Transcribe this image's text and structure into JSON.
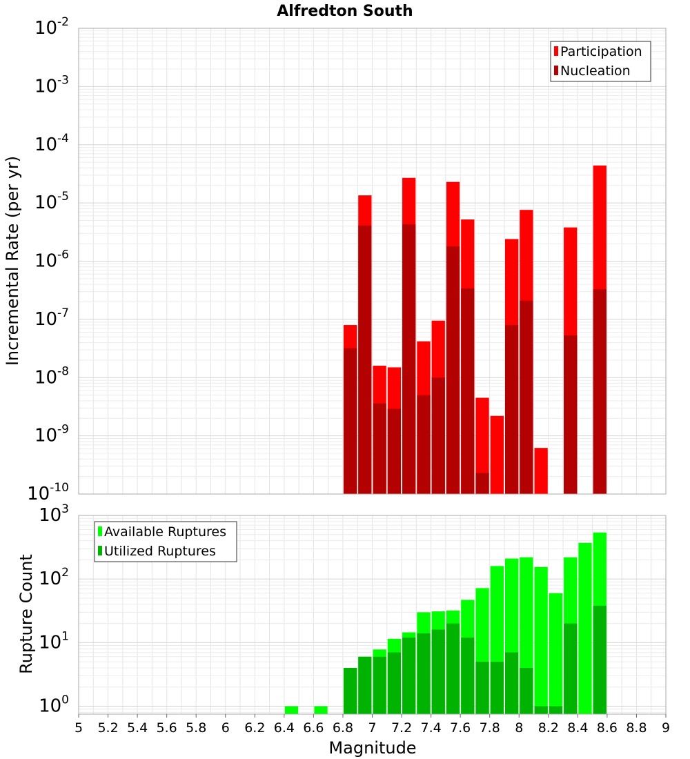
{
  "chart_data": {
    "title": "Alfredton South",
    "xlabel": "Magnitude",
    "x_ticks": [
      "5",
      "5.2",
      "5.4",
      "5.6",
      "5.8",
      "6",
      "6.2",
      "6.4",
      "6.6",
      "6.8",
      "7",
      "7.2",
      "7.4",
      "7.6",
      "7.8",
      "8",
      "8.2",
      "8.4",
      "8.6",
      "8.8",
      "9"
    ],
    "xlim": [
      5,
      9
    ],
    "bar_width": 0.1,
    "panels": [
      {
        "type": "bar",
        "scale": "log",
        "ylabel": "Incremental Rate (per yr)",
        "ylim_exponents": [
          -10,
          -2
        ],
        "y_ticks": [
          {
            "base": "10",
            "exp": "-2"
          },
          {
            "base": "10",
            "exp": "-3"
          },
          {
            "base": "10",
            "exp": "-4"
          },
          {
            "base": "10",
            "exp": "-5"
          },
          {
            "base": "10",
            "exp": "-6"
          },
          {
            "base": "10",
            "exp": "-7"
          },
          {
            "base": "10",
            "exp": "-8"
          },
          {
            "base": "10",
            "exp": "-9"
          },
          {
            "base": "10",
            "exp": "-10"
          }
        ],
        "grid": true,
        "legend_position": "top-right",
        "x": [
          6.85,
          6.95,
          7.05,
          7.15,
          7.25,
          7.35,
          7.45,
          7.55,
          7.65,
          7.75,
          7.85,
          7.95,
          8.05,
          8.15,
          8.35,
          8.55
        ],
        "series": [
          {
            "name": "Participation",
            "color": "#ff0000",
            "values": [
              8e-08,
              1.35e-05,
              1.6e-08,
              1.5e-08,
              2.7e-05,
              4.2e-08,
              9.5e-08,
              2.3e-05,
              5.2e-06,
              4.5e-09,
              2.2e-09,
              2.4e-06,
              7.6e-06,
              6.2e-10,
              3.8e-06,
              4.4e-05
            ]
          },
          {
            "name": "Nucleation",
            "color": "#b30000",
            "values": [
              3.2e-08,
              4.1e-06,
              3.6e-09,
              2.9e-09,
              4.3e-06,
              5e-09,
              1e-08,
              1.8e-06,
              3.4e-07,
              2.3e-10,
              null,
              8e-08,
              2.1e-07,
              null,
              5.3e-08,
              3.3e-07
            ]
          }
        ]
      },
      {
        "type": "bar",
        "scale": "log",
        "ylabel": "Rupture Count",
        "ylim": [
          0.75,
          1000
        ],
        "y_ticks": [
          {
            "base": "10",
            "exp": "3"
          },
          {
            "base": "10",
            "exp": "2"
          },
          {
            "base": "10",
            "exp": "1"
          },
          {
            "base": "10",
            "exp": "0"
          }
        ],
        "grid": true,
        "legend_position": "top-left",
        "x": [
          6.45,
          6.65,
          6.85,
          6.95,
          7.05,
          7.15,
          7.25,
          7.35,
          7.45,
          7.55,
          7.65,
          7.75,
          7.85,
          7.95,
          8.05,
          8.15,
          8.25,
          8.35,
          8.45,
          8.55
        ],
        "series": [
          {
            "name": "Available Ruptures",
            "color": "#00ff00",
            "values": [
              1,
              1,
              4,
              6,
              7.8,
              11.5,
              14.5,
              30,
              31,
              32,
              47,
              72,
              160,
              210,
              220,
              155,
              60,
              220,
              370,
              540
            ]
          },
          {
            "name": "Utilized Ruptures",
            "color": "#00b300",
            "values": [
              null,
              null,
              4,
              6,
              6,
              7,
              12,
              14,
              16,
              20,
              12,
              5,
              5,
              7,
              4,
              1,
              1,
              20,
              null,
              38
            ]
          }
        ]
      }
    ]
  }
}
